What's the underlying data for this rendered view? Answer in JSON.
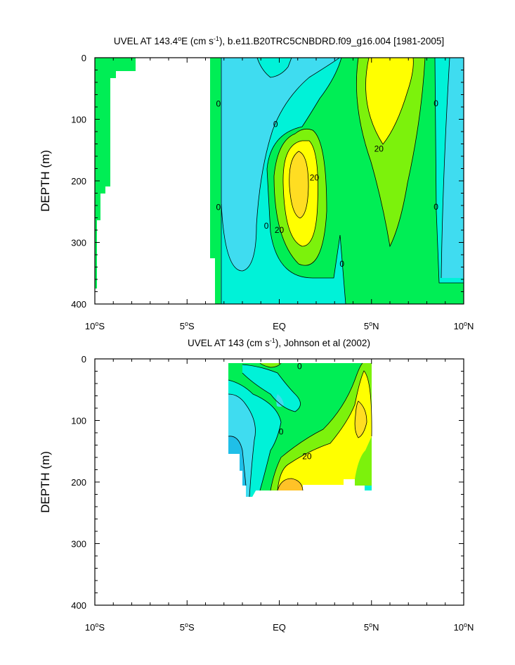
{
  "colors": {
    "lt_m20": "#1fbfe8",
    "lt_m10": "#3fdcf0",
    "lt_0": "#00f2d8",
    "lt_10": "#00ee55",
    "lt_20": "#7cf20c",
    "lt_30": "#ffff00",
    "lt_40": "#ffdd22",
    "lt_50": "#ffc227"
  },
  "chart_data": [
    {
      "type": "contour",
      "title_main": "UVEL AT 143.4",
      "title_sup1": "o",
      "title_unit1": "E (cm s",
      "title_sup2": "-1",
      "title_rest": "), b.e11.B20TRC5CNBDRD.f09_g16.004 [1981-2005]",
      "ylabel": "DEPTH (m)",
      "xlim": [
        -10,
        10
      ],
      "ylim": [
        400,
        0
      ],
      "xticks": [
        {
          "v": -10,
          "main": "10",
          "sup": "o",
          "tail": "S"
        },
        {
          "v": -5,
          "main": "5",
          "sup": "o",
          "tail": "S"
        },
        {
          "v": 0,
          "main": "EQ",
          "sup": "",
          "tail": ""
        },
        {
          "v": 5,
          "main": "5",
          "sup": "o",
          "tail": "N"
        },
        {
          "v": 10,
          "main": "10",
          "sup": "o",
          "tail": "N"
        }
      ],
      "yticks": [
        0,
        100,
        200,
        300,
        400
      ],
      "contour_labels": [
        {
          "text": "0",
          "x": -3.3,
          "y": 75
        },
        {
          "text": "0",
          "x": -3.3,
          "y": 243
        },
        {
          "text": "0",
          "x": -0.2,
          "y": 108
        },
        {
          "text": "0",
          "x": -0.7,
          "y": 273
        },
        {
          "text": "20",
          "x": 0.0,
          "y": 280
        },
        {
          "text": "20",
          "x": 1.9,
          "y": 195
        },
        {
          "text": "0",
          "x": 3.4,
          "y": 335
        },
        {
          "text": "20",
          "x": 5.4,
          "y": 148
        },
        {
          "text": "0",
          "x": 8.5,
          "y": 74
        },
        {
          "text": "0",
          "x": 8.5,
          "y": 242
        }
      ]
    },
    {
      "type": "contour",
      "title_main": "UVEL AT 143 (cm s",
      "title_sup": "-1",
      "title_rest": "), Johnson et al (2002)",
      "ylabel": "DEPTH (m)",
      "xlim": [
        -10,
        10
      ],
      "ylim": [
        400,
        0
      ],
      "xticks": [
        {
          "v": -10,
          "main": "10",
          "sup": "o",
          "tail": "S"
        },
        {
          "v": -5,
          "main": "5",
          "sup": "o",
          "tail": "S"
        },
        {
          "v": 0,
          "main": "EQ",
          "sup": "",
          "tail": ""
        },
        {
          "v": 5,
          "main": "5",
          "sup": "o",
          "tail": "N"
        },
        {
          "v": 10,
          "main": "10",
          "sup": "o",
          "tail": "N"
        }
      ],
      "yticks": [
        0,
        100,
        200,
        300,
        400
      ],
      "contour_labels": [
        {
          "text": "0",
          "x": 1.1,
          "y": 12
        },
        {
          "text": "0",
          "x": 0.1,
          "y": 118
        },
        {
          "text": "20",
          "x": 1.5,
          "y": 158
        }
      ]
    }
  ]
}
